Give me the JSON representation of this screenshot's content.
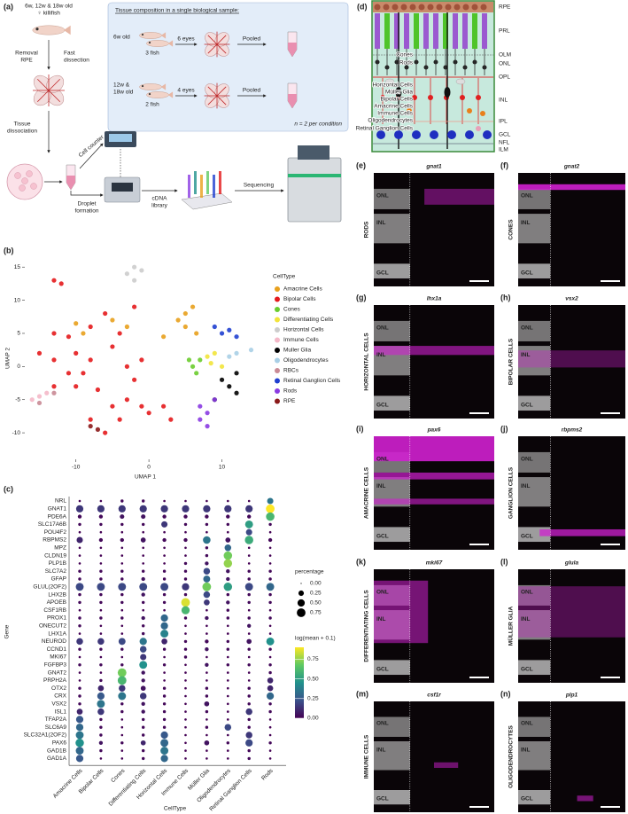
{
  "panel_a": {
    "label": "(a)",
    "fish_age": "6w, 12w & 18w old",
    "fish_sex": "♀ killifish",
    "removal": [
      "Removal",
      "RPE"
    ],
    "fast": [
      "Fast",
      "dissection"
    ],
    "tissue": [
      "Tissue",
      "dissociation"
    ],
    "cell_counter": "Cell counter",
    "droplet": [
      "Droplet",
      "formation"
    ],
    "cdna": [
      "cDNA",
      "library"
    ],
    "sequencing": "Sequencing",
    "box": {
      "title": "Tissue composition in a single biological sample:",
      "rows": [
        {
          "age": [
            "6w old"
          ],
          "fish": "3 fish",
          "eyes": "6 eyes",
          "pooled": "Pooled"
        },
        {
          "age": [
            "12w &",
            "18w old"
          ],
          "fish": "2 fish",
          "eyes": "4 eyes",
          "pooled": "Pooled"
        }
      ],
      "n": "n = 2 per condition"
    }
  },
  "umap": {
    "type": "scatter",
    "label": "(b)",
    "xlabel": "UMAP 1",
    "ylabel": "UMAP 2",
    "xlim": [
      -17,
      16
    ],
    "ylim": [
      -14,
      16.5
    ],
    "xticks": [
      -10,
      0,
      10
    ],
    "yticks": [
      -10,
      -5,
      0,
      5,
      10,
      15
    ],
    "legend_title": "CellType",
    "series": [
      {
        "name": "Amacrine Cells",
        "color": "#e8a01c",
        "x": [
          -10,
          -9,
          -5,
          -3,
          4,
          5,
          5,
          6,
          6.5,
          2
        ],
        "y": [
          6.5,
          5,
          7,
          6,
          7,
          6,
          8,
          9,
          5,
          4.5
        ]
      },
      {
        "name": "Bipolar Cells",
        "color": "#e41a1c",
        "x": [
          -13,
          -12,
          -13,
          -11,
          -15,
          -13,
          -10,
          -11,
          -9,
          -13,
          -10,
          -7,
          -8,
          -5,
          -4,
          -3,
          -2,
          -1,
          -3,
          -1,
          0,
          -4,
          -6,
          -8,
          -5,
          3,
          2,
          -6,
          -2,
          -8
        ],
        "y": [
          13,
          12.5,
          5,
          4.5,
          2,
          1,
          2,
          -1,
          -1,
          -3,
          -3,
          -3.5,
          1,
          3,
          5,
          0,
          -2,
          1,
          -5,
          -6,
          -7,
          -8,
          -10,
          -8,
          -6,
          -8,
          -6,
          8,
          9,
          6
        ]
      },
      {
        "name": "Cones",
        "color": "#6acc2e",
        "x": [
          6,
          7,
          6.5,
          5.5
        ],
        "y": [
          0,
          1,
          -1,
          1
        ]
      },
      {
        "name": "Differentiating Cells",
        "color": "#f2e43a",
        "x": [
          8,
          9,
          8.5,
          10
        ],
        "y": [
          1.5,
          2,
          0.5,
          0
        ]
      },
      {
        "name": "Horizontal Cells",
        "color": "#cccccc",
        "x": [
          -3,
          -2,
          -1,
          -2
        ],
        "y": [
          14,
          13,
          14.5,
          15
        ]
      },
      {
        "name": "Immune Cells",
        "color": "#f4b8c8",
        "x": [
          -16,
          -15,
          -14
        ],
        "y": [
          -5,
          -4.5,
          -4
        ]
      },
      {
        "name": "Muller Glia",
        "color": "#000000",
        "x": [
          10,
          11,
          12,
          9,
          12
        ],
        "y": [
          -2,
          -3,
          -4,
          -5,
          -1
        ]
      },
      {
        "name": "Oligodendrocytes",
        "color": "#a9cfe6",
        "x": [
          12,
          14,
          11
        ],
        "y": [
          2,
          2.5,
          1.5
        ]
      },
      {
        "name": "RBCs",
        "color": "#c98a95",
        "x": [
          -15,
          -13
        ],
        "y": [
          -5.5,
          -4
        ]
      },
      {
        "name": "Retinal Ganglion Cells",
        "color": "#1f3fd0",
        "x": [
          9,
          10,
          11,
          12
        ],
        "y": [
          6,
          5,
          5.5,
          4.5
        ]
      },
      {
        "name": "Rods",
        "color": "#8a3be2",
        "x": [
          7,
          8,
          9,
          8,
          7
        ],
        "y": [
          -6,
          -7,
          -5,
          -9,
          -8
        ]
      },
      {
        "name": "RPE",
        "color": "#8b1a1a",
        "x": [
          -8,
          -7
        ],
        "y": [
          -9,
          -9.5
        ]
      }
    ]
  },
  "dotplot": {
    "type": "dot",
    "label": "(c)",
    "xlabel": "CellType",
    "ylabel": "Gene",
    "categories": [
      "Amacrine Cells",
      "Bipolar Cells",
      "Cones",
      "Differentiating Cells",
      "Horizontal Cells",
      "Immune Cells",
      "Müller Glia",
      "Oligodendrocytes",
      "Retinal Ganglion Cells",
      "Rods"
    ],
    "genes": [
      "NRL",
      "GNAT1",
      "PDE6A",
      "SLC17A6B",
      "POU4F2",
      "RBPMS2",
      "MPZ",
      "CLDN19",
      "PLP1B",
      "SLC7A2",
      "GFAP",
      "GLUL(2OF2)",
      "LHX2B",
      "APOEB",
      "CSF1RB",
      "PROX1",
      "ONECUT2",
      "LHX1A",
      "NEUROD",
      "CCND1",
      "MKI67",
      "FGFBP3",
      "GNAT2",
      "PRPH2A",
      "OTX2",
      "CRX",
      "VSX2",
      "ISL1",
      "TFAP2A",
      "SLC6A9",
      "SLC32A1(2OF2)",
      "PAX6",
      "GAD1B",
      "GAD1A"
    ],
    "percentage": [
      [
        0.02,
        0.02,
        0.05,
        0.05,
        0.02,
        0.02,
        0.02,
        0.02,
        0.02,
        0.35
      ],
      [
        0.5,
        0.5,
        0.5,
        0.5,
        0.5,
        0.5,
        0.5,
        0.5,
        0.5,
        0.75
      ],
      [
        0.1,
        0.1,
        0.15,
        0.15,
        0.1,
        0.1,
        0.1,
        0.1,
        0.1,
        0.7
      ],
      [
        0.05,
        0.05,
        0.05,
        0.05,
        0.35,
        0.05,
        0.05,
        0.05,
        0.6,
        0.05
      ],
      [
        0.02,
        0.02,
        0.02,
        0.02,
        0.02,
        0.02,
        0.02,
        0.02,
        0.35,
        0.02
      ],
      [
        0.35,
        0.1,
        0.1,
        0.2,
        0.1,
        0.1,
        0.55,
        0.2,
        0.7,
        0.1
      ],
      [
        0.02,
        0.02,
        0.02,
        0.02,
        0.02,
        0.02,
        0.05,
        0.4,
        0.02,
        0.02
      ],
      [
        0.02,
        0.02,
        0.02,
        0.02,
        0.02,
        0.02,
        0.05,
        0.7,
        0.02,
        0.02
      ],
      [
        0.02,
        0.02,
        0.02,
        0.02,
        0.02,
        0.05,
        0.1,
        0.7,
        0.02,
        0.02
      ],
      [
        0.05,
        0.05,
        0.05,
        0.05,
        0.05,
        0.05,
        0.4,
        0.1,
        0.05,
        0.05
      ],
      [
        0.05,
        0.05,
        0.05,
        0.1,
        0.05,
        0.05,
        0.45,
        0.1,
        0.05,
        0.05
      ],
      [
        0.6,
        0.6,
        0.6,
        0.6,
        0.6,
        0.5,
        0.75,
        0.7,
        0.6,
        0.6
      ],
      [
        0.05,
        0.05,
        0.05,
        0.1,
        0.05,
        0.05,
        0.4,
        0.05,
        0.05,
        0.05
      ],
      [
        0.05,
        0.05,
        0.05,
        0.05,
        0.05,
        0.75,
        0.3,
        0.1,
        0.05,
        0.05
      ],
      [
        0.02,
        0.02,
        0.02,
        0.02,
        0.02,
        0.65,
        0.02,
        0.05,
        0.02,
        0.02
      ],
      [
        0.05,
        0.05,
        0.05,
        0.1,
        0.5,
        0.05,
        0.1,
        0.05,
        0.05,
        0.05
      ],
      [
        0.05,
        0.02,
        0.02,
        0.05,
        0.5,
        0.02,
        0.02,
        0.02,
        0.1,
        0.02
      ],
      [
        0.02,
        0.02,
        0.02,
        0.05,
        0.6,
        0.02,
        0.02,
        0.02,
        0.02,
        0.02
      ],
      [
        0.4,
        0.4,
        0.45,
        0.5,
        0.3,
        0.05,
        0.1,
        0.05,
        0.2,
        0.6
      ],
      [
        0.05,
        0.05,
        0.05,
        0.4,
        0.05,
        0.05,
        0.1,
        0.05,
        0.05,
        0.05
      ],
      [
        0.02,
        0.02,
        0.02,
        0.35,
        0.02,
        0.05,
        0.02,
        0.02,
        0.02,
        0.02
      ],
      [
        0.05,
        0.05,
        0.05,
        0.6,
        0.05,
        0.02,
        0.1,
        0.05,
        0.05,
        0.05
      ],
      [
        0.02,
        0.02,
        0.75,
        0.1,
        0.02,
        0.02,
        0.02,
        0.02,
        0.02,
        0.05
      ],
      [
        0.02,
        0.05,
        0.75,
        0.1,
        0.02,
        0.02,
        0.02,
        0.02,
        0.02,
        0.3
      ],
      [
        0.05,
        0.3,
        0.4,
        0.2,
        0.05,
        0.02,
        0.05,
        0.02,
        0.05,
        0.3
      ],
      [
        0.05,
        0.5,
        0.6,
        0.4,
        0.05,
        0.02,
        0.05,
        0.02,
        0.05,
        0.5
      ],
      [
        0.05,
        0.6,
        0.05,
        0.1,
        0.05,
        0.02,
        0.2,
        0.02,
        0.05,
        0.05
      ],
      [
        0.3,
        0.4,
        0.05,
        0.1,
        0.05,
        0.02,
        0.05,
        0.02,
        0.4,
        0.05
      ],
      [
        0.5,
        0.05,
        0.02,
        0.05,
        0.05,
        0.02,
        0.02,
        0.02,
        0.05,
        0.02
      ],
      [
        0.5,
        0.05,
        0.02,
        0.05,
        0.05,
        0.02,
        0.05,
        0.4,
        0.05,
        0.02
      ],
      [
        0.6,
        0.05,
        0.02,
        0.05,
        0.5,
        0.02,
        0.02,
        0.02,
        0.4,
        0.02
      ],
      [
        0.7,
        0.1,
        0.05,
        0.2,
        0.6,
        0.02,
        0.2,
        0.05,
        0.5,
        0.05
      ],
      [
        0.6,
        0.05,
        0.02,
        0.05,
        0.6,
        0.02,
        0.02,
        0.02,
        0.05,
        0.02
      ],
      [
        0.5,
        0.02,
        0.02,
        0.05,
        0.5,
        0.02,
        0.02,
        0.02,
        0.05,
        0.02
      ]
    ],
    "expression": [
      [
        0,
        0,
        0.02,
        0.02,
        0,
        0,
        0,
        0,
        0,
        0.35
      ],
      [
        0.15,
        0.15,
        0.15,
        0.15,
        0.15,
        0.15,
        0.15,
        0.15,
        0.15,
        0.9
      ],
      [
        0.02,
        0.02,
        0.05,
        0.05,
        0.02,
        0.02,
        0.02,
        0.02,
        0.02,
        0.6
      ],
      [
        0.02,
        0.02,
        0.02,
        0.02,
        0.15,
        0.02,
        0.02,
        0.02,
        0.5,
        0.02
      ],
      [
        0,
        0,
        0,
        0,
        0,
        0,
        0,
        0,
        0.2,
        0
      ],
      [
        0.1,
        0.02,
        0.02,
        0.05,
        0.02,
        0.02,
        0.35,
        0.05,
        0.55,
        0.02
      ],
      [
        0,
        0,
        0,
        0,
        0,
        0,
        0.02,
        0.3,
        0,
        0
      ],
      [
        0,
        0,
        0,
        0,
        0,
        0,
        0.02,
        0.7,
        0,
        0
      ],
      [
        0,
        0,
        0,
        0,
        0,
        0.02,
        0.05,
        0.75,
        0,
        0
      ],
      [
        0.02,
        0.02,
        0.02,
        0.02,
        0.02,
        0.02,
        0.2,
        0.05,
        0.02,
        0.02
      ],
      [
        0.02,
        0.02,
        0.02,
        0.05,
        0.02,
        0.02,
        0.3,
        0.05,
        0.02,
        0.02
      ],
      [
        0.2,
        0.2,
        0.2,
        0.2,
        0.2,
        0.15,
        0.7,
        0.5,
        0.2,
        0.3
      ],
      [
        0.02,
        0.02,
        0.02,
        0.05,
        0.02,
        0.02,
        0.2,
        0.02,
        0.02,
        0.02
      ],
      [
        0.02,
        0.02,
        0.02,
        0.02,
        0.02,
        0.85,
        0.15,
        0.05,
        0.02,
        0.02
      ],
      [
        0,
        0,
        0,
        0,
        0,
        0.6,
        0,
        0.02,
        0,
        0
      ],
      [
        0.02,
        0.02,
        0.02,
        0.05,
        0.3,
        0.02,
        0.05,
        0.02,
        0.02,
        0.02
      ],
      [
        0.02,
        0,
        0,
        0.02,
        0.3,
        0,
        0,
        0,
        0.05,
        0
      ],
      [
        0,
        0,
        0,
        0.02,
        0.4,
        0,
        0,
        0,
        0,
        0
      ],
      [
        0.15,
        0.15,
        0.2,
        0.35,
        0.1,
        0.02,
        0.02,
        0.02,
        0.05,
        0.45
      ],
      [
        0.02,
        0.02,
        0.02,
        0.2,
        0.02,
        0.02,
        0.05,
        0.02,
        0.02,
        0.02
      ],
      [
        0,
        0,
        0,
        0.15,
        0,
        0.02,
        0,
        0,
        0,
        0
      ],
      [
        0.02,
        0.02,
        0.02,
        0.45,
        0.02,
        0,
        0.05,
        0.02,
        0.02,
        0.02
      ],
      [
        0,
        0,
        0.7,
        0.05,
        0,
        0,
        0,
        0,
        0,
        0.02
      ],
      [
        0,
        0.02,
        0.6,
        0.05,
        0,
        0,
        0,
        0,
        0,
        0.1
      ],
      [
        0.02,
        0.1,
        0.15,
        0.05,
        0.02,
        0,
        0.02,
        0,
        0.02,
        0.1
      ],
      [
        0.02,
        0.25,
        0.35,
        0.15,
        0.02,
        0,
        0.02,
        0,
        0.02,
        0.3
      ],
      [
        0.02,
        0.35,
        0.02,
        0.05,
        0.02,
        0,
        0.05,
        0,
        0.02,
        0.02
      ],
      [
        0.1,
        0.15,
        0.02,
        0.05,
        0.02,
        0,
        0.02,
        0,
        0.15,
        0.02
      ],
      [
        0.25,
        0.02,
        0,
        0.02,
        0.02,
        0,
        0,
        0,
        0.02,
        0
      ],
      [
        0.3,
        0.02,
        0,
        0.02,
        0.02,
        0,
        0.02,
        0.2,
        0.02,
        0
      ],
      [
        0.35,
        0.02,
        0,
        0.02,
        0.25,
        0,
        0,
        0,
        0.15,
        0
      ],
      [
        0.45,
        0.05,
        0.02,
        0.1,
        0.3,
        0,
        0.05,
        0.02,
        0.2,
        0.02
      ],
      [
        0.3,
        0.02,
        0,
        0.02,
        0.35,
        0,
        0,
        0,
        0.02,
        0
      ],
      [
        0.25,
        0,
        0,
        0.02,
        0.3,
        0,
        0,
        0,
        0.02,
        0
      ]
    ],
    "size_title": "percentage",
    "size_ticks": [
      {
        "value": 0,
        "label": "0.00"
      },
      {
        "value": 0.25,
        "label": "0.25"
      },
      {
        "value": 0.5,
        "label": "0.50"
      },
      {
        "value": 0.75,
        "label": "0.75"
      }
    ],
    "color_title": "log(mean + 0.1)",
    "color_lim": [
      0,
      0.9
    ],
    "color_ticks": [
      {
        "value": 0,
        "label": "0.00"
      },
      {
        "value": 0.25,
        "label": "0.25"
      },
      {
        "value": 0.5,
        "label": "0.50"
      },
      {
        "value": 0.75,
        "label": "0.75"
      }
    ]
  },
  "panel_d": {
    "label": "(d)",
    "layers": [
      "RPE",
      "PRL",
      "OLM",
      "ONL",
      "OPL",
      "INL",
      "IPL",
      "GCL",
      "NFL",
      "ILM"
    ],
    "cells": [
      {
        "name": "Cones",
        "color": "#4fc42a"
      },
      {
        "name": "Rods",
        "color": "#9b59d0"
      },
      {
        "name": "Horizontal Cells",
        "color": "#b8b8b8"
      },
      {
        "name": "Müller Glia",
        "color": "#111111"
      },
      {
        "name": "Bipolar Cells",
        "color": "#e02020"
      },
      {
        "name": "Amacrine Cells",
        "color": "#e8801c"
      },
      {
        "name": "Immune Cells",
        "color": "#e8a0b8"
      },
      {
        "name": "Oligodendrocytes",
        "color": "#9fb8c8"
      },
      {
        "name": "Retinal Ganglion Cells",
        "color": "#1f2fc0"
      }
    ]
  },
  "micrographs": [
    {
      "label": "(e)",
      "gene": "gnat1",
      "cell_type": "RODS",
      "layers": [
        "ONL",
        "INL",
        "GCL"
      ]
    },
    {
      "label": "(f)",
      "gene": "gnat2",
      "cell_type": "CONES",
      "layers": [
        "ONL",
        "INL",
        "GCL"
      ]
    },
    {
      "label": "(g)",
      "gene": "lhx1a",
      "cell_type": "HORIZONTAL CELLS",
      "layers": [
        "ONL",
        "INL",
        "GCL"
      ]
    },
    {
      "label": "(h)",
      "gene": "vsx2",
      "cell_type": "BIPOLAR CELLS",
      "layers": [
        "ONL",
        "INL",
        "GCL"
      ]
    },
    {
      "label": "(i)",
      "gene": "pax6",
      "cell_type": "AMACRINE CELLS",
      "layers": [
        "ONL",
        "INL",
        "GCL"
      ]
    },
    {
      "label": "(j)",
      "gene": "rbpms2",
      "cell_type": "GANGLION CELLS",
      "layers": [
        "ONL",
        "INL",
        "GCL"
      ]
    },
    {
      "label": "(k)",
      "gene": "mki67",
      "cell_type": "DIFFERENTIATING CELLS",
      "layers": [
        "ONL",
        "INL",
        "GCL"
      ]
    },
    {
      "label": "(l)",
      "gene": "glula",
      "cell_type": "MÜLLER GLIA",
      "layers": [
        "ONL",
        "INL",
        "GCL"
      ]
    },
    {
      "label": "(m)",
      "gene": "csf1r",
      "cell_type": "IMMUNE CELLS",
      "layers": [
        "ONL",
        "INL",
        "GCL"
      ]
    },
    {
      "label": "(n)",
      "gene": "plp1",
      "cell_type": "OLIGODENDROCYTES",
      "layers": [
        "ONL",
        "INL",
        "GCL"
      ]
    }
  ]
}
